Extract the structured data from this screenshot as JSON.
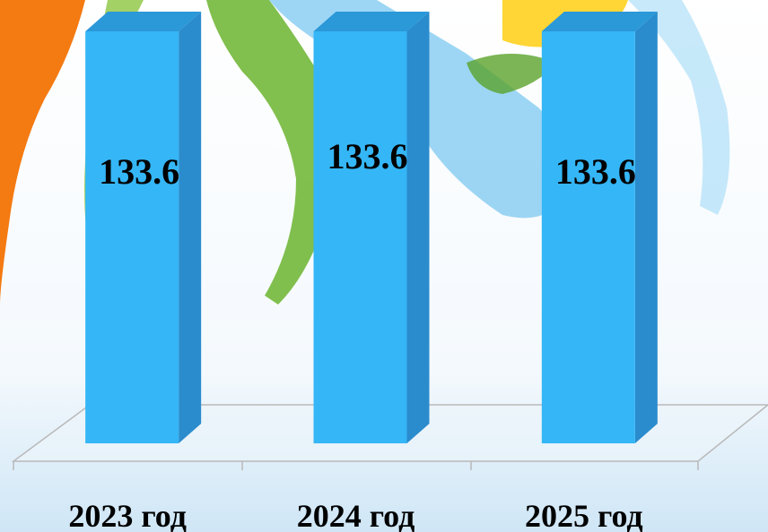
{
  "chart_data": {
    "type": "bar3d",
    "categories": [
      "2023 год",
      "2024 год",
      "2025 год"
    ],
    "values": [
      133.6,
      133.6,
      133.6
    ],
    "color": "#35b6f6"
  }
}
